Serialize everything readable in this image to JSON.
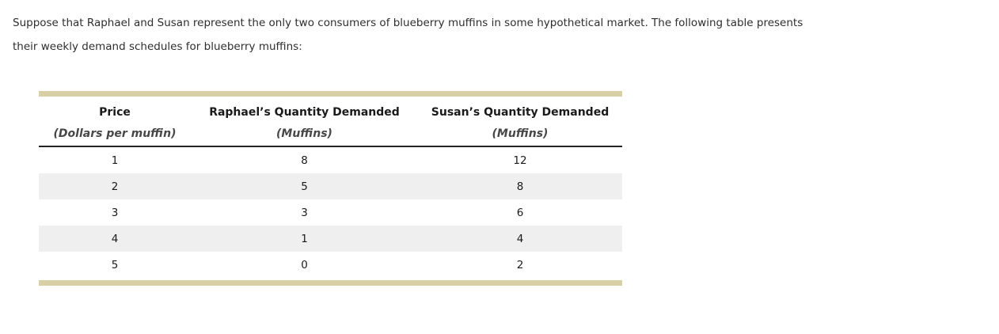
{
  "question": {
    "lines": [
      "Suppose that Raphael and Susan represent the only two consumers of blueberry muffins in some hypothetical market. The following table presents",
      "their weekly demand schedules for blueberry muffins:"
    ]
  },
  "table": {
    "columns": [
      {
        "title": "Price",
        "subtitle": "(Dollars per muffin)"
      },
      {
        "title": "Raphael’s Quantity Demanded",
        "subtitle": "(Muffins)"
      },
      {
        "title": "Susan’s Quantity Demanded",
        "subtitle": "(Muffins)"
      }
    ],
    "rows": [
      [
        "1",
        "8",
        "12"
      ],
      [
        "2",
        "5",
        "8"
      ],
      [
        "3",
        "3",
        "6"
      ],
      [
        "4",
        "1",
        "4"
      ],
      [
        "5",
        "0",
        "2"
      ]
    ],
    "colors": {
      "accent_bar": "#d8d0a4",
      "row_stripe": "#efefef",
      "header_rule": "#222222"
    }
  }
}
